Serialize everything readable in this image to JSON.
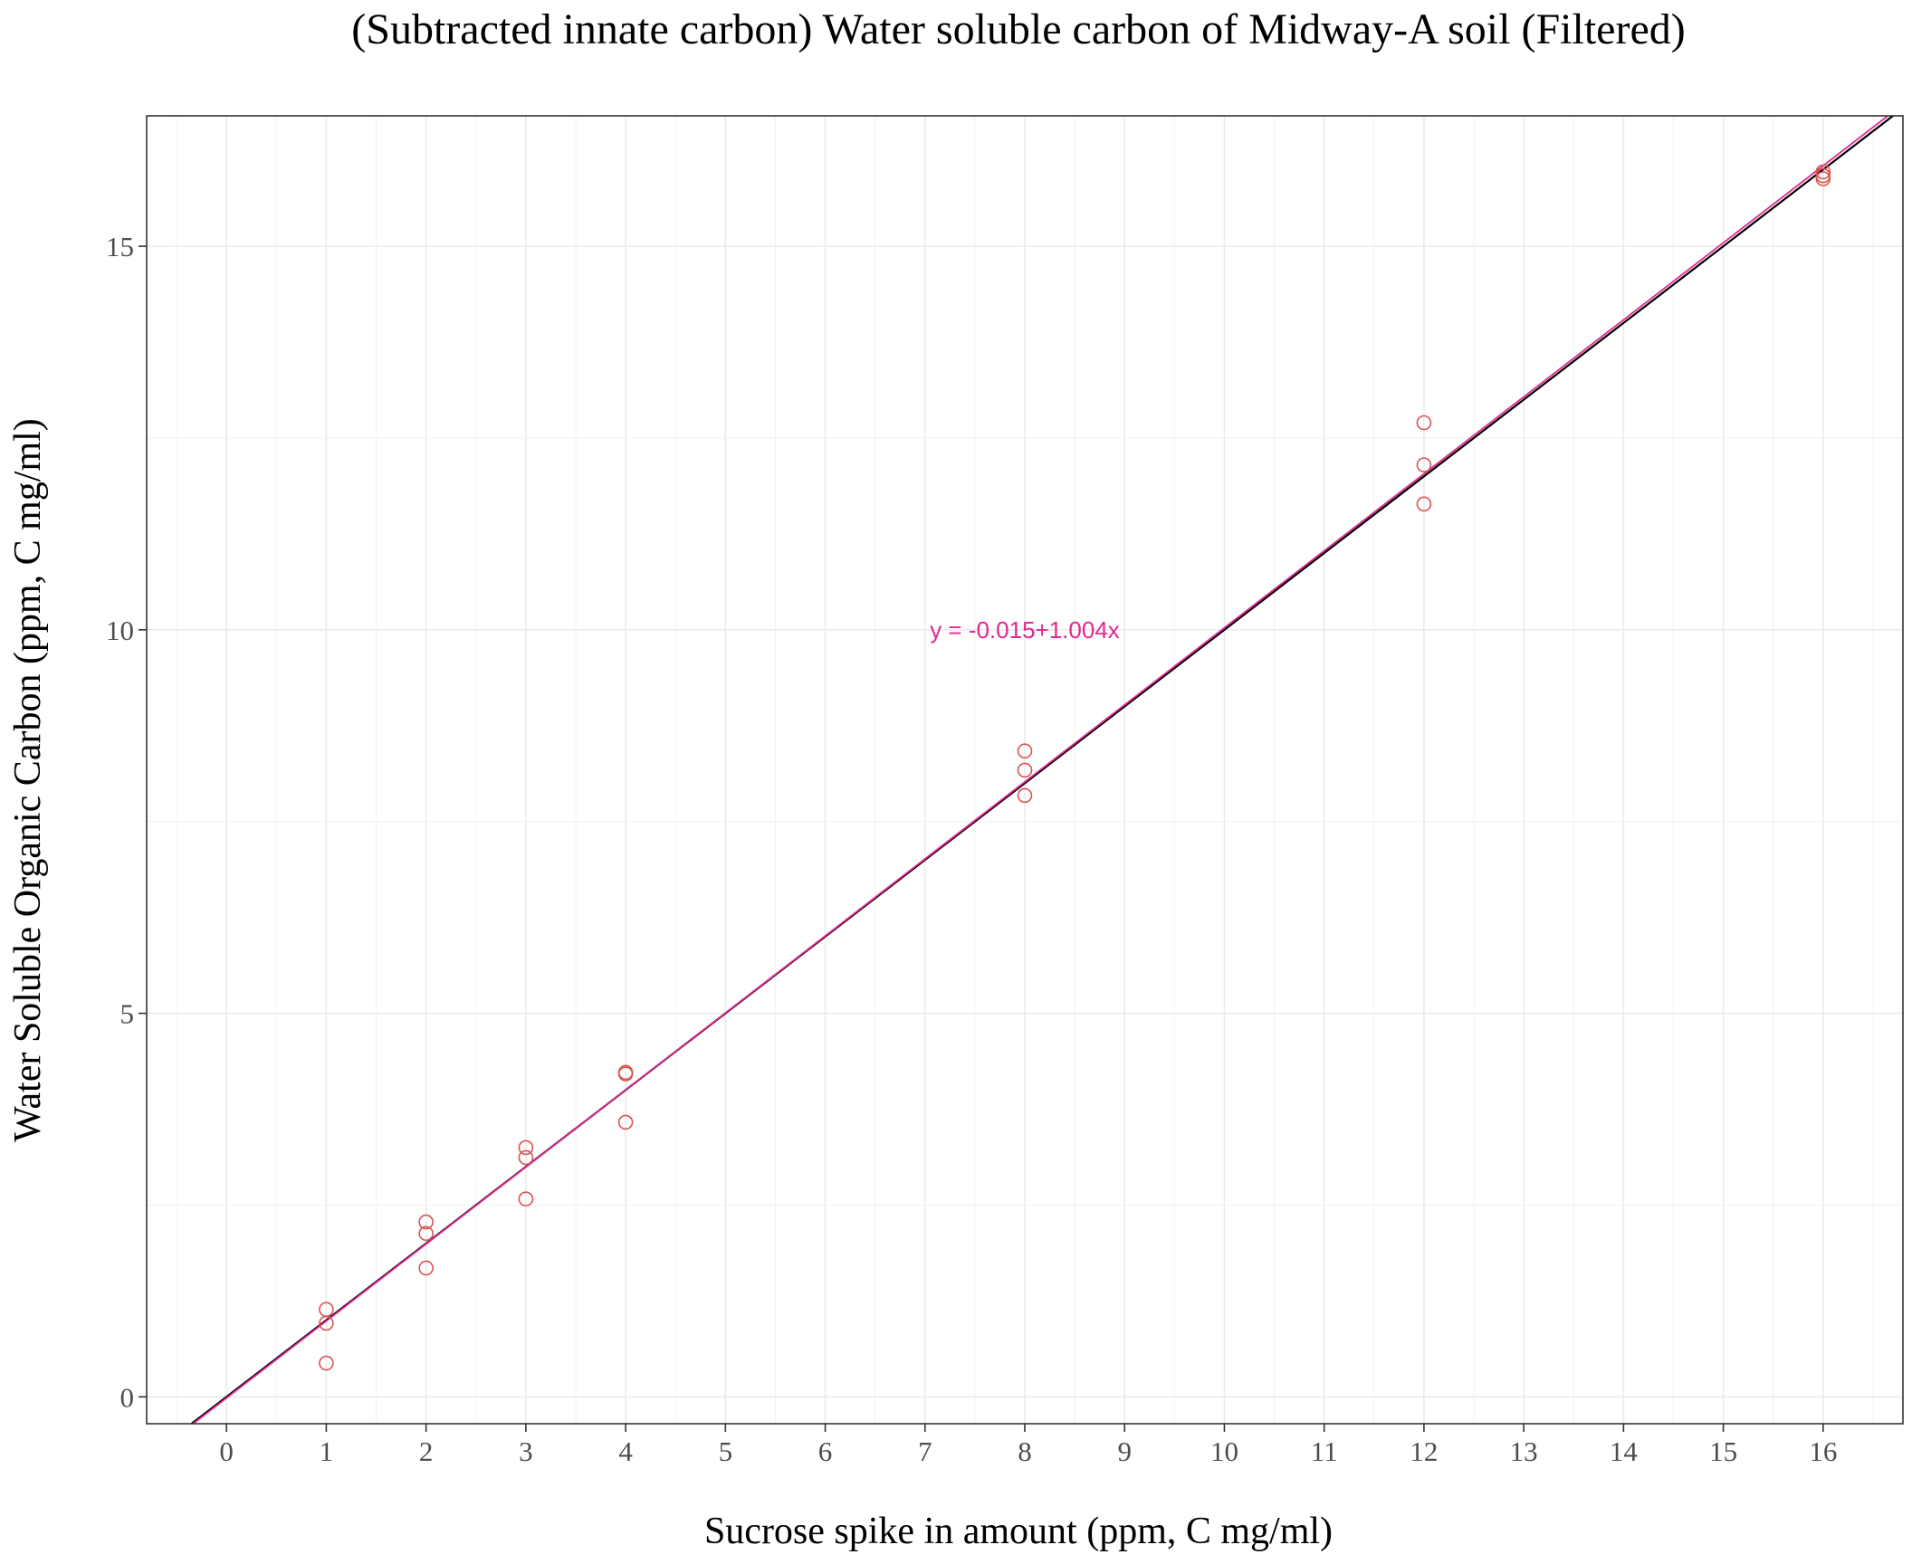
{
  "chart_data": {
    "type": "scatter",
    "title": "(Subtracted innate carbon) Water soluble carbon of Midway-A soil (Filtered)",
    "xlabel": "Sucrose spike in amount (ppm, C mg/ml)",
    "ylabel": "Water Soluble Organic Carbon (ppm, C mg/ml)",
    "xlim": [
      -0.8,
      16.8
    ],
    "ylim": [
      -0.35,
      16.7
    ],
    "x_ticks": [
      0,
      1,
      2,
      3,
      4,
      5,
      6,
      7,
      8,
      9,
      10,
      11,
      12,
      13,
      14,
      15,
      16
    ],
    "y_ticks": [
      0,
      5,
      10,
      15
    ],
    "grid": true,
    "series": [
      {
        "marker": "open-circle",
        "color": "#d9534f",
        "points": [
          [
            1,
            1.14
          ],
          [
            1,
            0.96
          ],
          [
            1,
            0.44
          ],
          [
            2,
            2.28
          ],
          [
            2,
            2.13
          ],
          [
            2,
            1.68
          ],
          [
            3,
            3.25
          ],
          [
            3,
            3.12
          ],
          [
            3,
            2.58
          ],
          [
            4,
            4.23
          ],
          [
            4,
            4.21
          ],
          [
            4,
            3.58
          ],
          [
            8,
            8.42
          ],
          [
            8,
            8.17
          ],
          [
            8,
            7.84
          ],
          [
            12,
            12.7
          ],
          [
            12,
            12.15
          ],
          [
            12,
            11.64
          ],
          [
            16,
            15.97
          ],
          [
            16,
            15.92
          ],
          [
            16,
            15.88
          ]
        ]
      }
    ],
    "lines": [
      {
        "kind": "identity",
        "intercept": 0,
        "slope": 1,
        "color": "#000000"
      },
      {
        "kind": "regression",
        "intercept": -0.015,
        "slope": 1.004,
        "color": "#e0288f"
      }
    ],
    "annotations": [
      {
        "text": "y = -0.015+1.004x",
        "x": 8,
        "y": 10,
        "color": "#e0288f"
      }
    ]
  }
}
